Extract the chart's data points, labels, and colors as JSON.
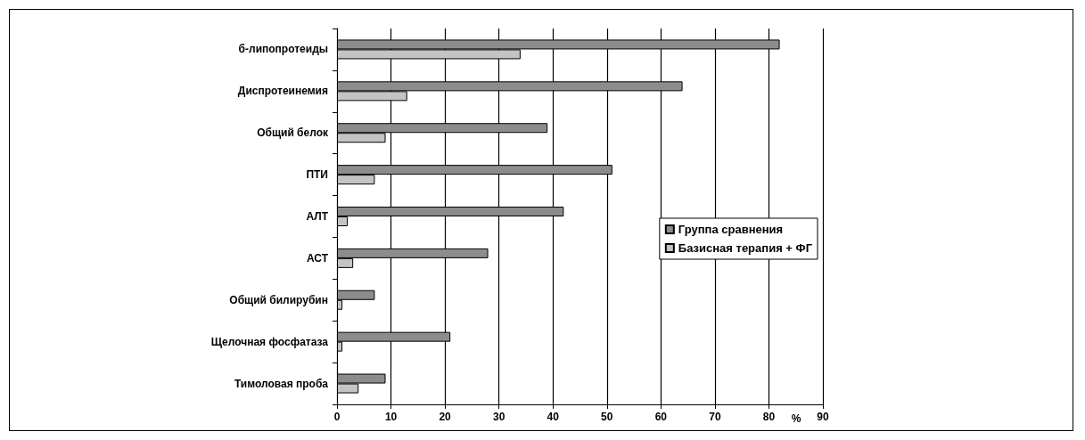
{
  "chart_data": {
    "type": "bar",
    "orientation": "horizontal",
    "xlabel": "%",
    "categories": [
      "б-липопротеиды",
      "Диспротеинемия",
      "Общий белок",
      "ПТИ",
      "АЛТ",
      "АСТ",
      "Общий билирубин",
      "Щелочная фосфатаза",
      "Тимоловая проба"
    ],
    "series": [
      {
        "name": "Группа сравнения",
        "color": "#8c8c8c",
        "values": [
          82,
          64,
          39,
          51,
          42,
          28,
          7,
          21,
          9
        ]
      },
      {
        "name": "Базисная терапия + ФГ",
        "color": "#c4c4c4",
        "values": [
          34,
          13,
          9,
          7,
          2,
          3,
          1,
          1,
          4
        ]
      }
    ],
    "xlim": [
      0,
      90
    ],
    "xticks": [
      0,
      10,
      20,
      30,
      40,
      50,
      60,
      70,
      80,
      90
    ],
    "grid": "x",
    "legend": "right"
  }
}
